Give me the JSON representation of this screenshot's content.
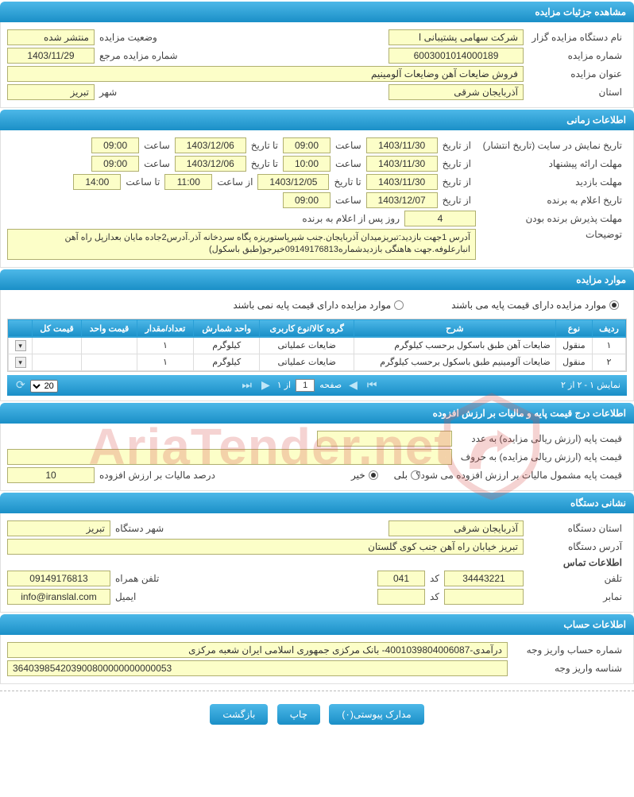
{
  "colors": {
    "header_gradient_top": "#4db8e8",
    "header_gradient_bottom": "#1a8fc7",
    "header_text": "#ffffff",
    "field_bg": "#fcfec8",
    "field_border": "#b0b070",
    "watermark": "#d9534f",
    "table_border": "#dddddd"
  },
  "sections": {
    "details": {
      "title": "مشاهده جزئیات مزایده",
      "org_label": "نام دستگاه مزایده گزار",
      "org_value": "شركت سهامی پشتیبانی ا",
      "status_label": "وضعیت مزایده",
      "status_value": "منتشر شده",
      "no_label": "شماره مزایده",
      "no_value": "6003001014000189",
      "ref_label": "شماره مزایده مرجع",
      "ref_value": "1403/11/29",
      "title_label": "عنوان مزایده",
      "title_value": "فروش ضایعات آهن وضایعات آلومینیم",
      "province_label": "استان",
      "province_value": "آذربایجان شرقی",
      "city_label": "شهر",
      "city_value": "تبریز"
    },
    "timing": {
      "title": "اطلاعات زمانی",
      "display_label": "تاریخ نمایش در سایت (تاریخ انتشار)",
      "offer_label": "مهلت ارائه پیشنهاد",
      "visit_label": "مهلت بازدید",
      "announce_label": "تاریخ اعلام به برنده",
      "accept_label": "مهلت پذیرش برنده بودن",
      "from_date": "از تاریخ",
      "to_date": "تا تاریخ",
      "time": "ساعت",
      "from_time": "از ساعت",
      "to_time": "تا ساعت",
      "after_announce": "روز پس از اعلام به برنده",
      "display_from": "1403/11/30",
      "display_from_time": "09:00",
      "display_to": "1403/12/06",
      "display_to_time": "09:00",
      "offer_from": "1403/11/30",
      "offer_from_time": "10:00",
      "offer_to": "1403/12/06",
      "offer_to_time": "09:00",
      "visit_from": "1403/11/30",
      "visit_to": "1403/12/05",
      "visit_from_time": "11:00",
      "visit_to_time": "14:00",
      "announce_from": "1403/12/07",
      "announce_time": "09:00",
      "accept_days": "4",
      "desc_label": "توضیحات",
      "desc_value": "آدرس 1جهت بازدید:تبریزمیدان آذربایجان.جنب شیرپاستوریزه پگاه سردخانه آذر.آدرس2جاده مایان بعدازپل راه آهن انبارعلوفه.جهت هاهنگی بازدیدشماره09149176813خیرجو(طبق باسکول)"
    },
    "items": {
      "title": "موارد مزایده",
      "radio1": "موارد مزایده دارای قیمت پایه می باشند",
      "radio2": "موارد مزایده دارای قیمت پایه نمی باشند",
      "columns": [
        "ردیف",
        "نوع",
        "شرح",
        "گروه کالا/نوع کاربری",
        "واحد شمارش",
        "تعداد/مقدار",
        "قیمت واحد",
        "قیمت کل",
        ""
      ],
      "rows": [
        [
          "۱",
          "منقول",
          "ضایعات آهن طبق باسکول برحسب کیلوگرم",
          "ضایعات عملیاتی",
          "کیلوگرم",
          "۱",
          "",
          "",
          ""
        ],
        [
          "۲",
          "منقول",
          "ضایعات آلومینیم طبق باسکول برحسب کیلوگرم",
          "ضایعات عملیاتی",
          "کیلوگرم",
          "۱",
          "",
          "",
          ""
        ]
      ],
      "pager": {
        "display": "نمایش ۱ - ۲ از ۲",
        "page_label": "صفحه",
        "page_value": "1",
        "of": "از ۱",
        "per_page": "20"
      }
    },
    "price": {
      "title": "اطلاعات درج قیمت پایه و مالیات بر ارزش افزوده",
      "num_label": "قیمت پایه (ارزش ریالی مزایده) به عدد",
      "word_label": "قیمت پایه (ارزش ریالی مزایده) به حروف",
      "vat_q": "قیمت پایه مشمول مالیات بر ارزش افزوده می شود؟",
      "yes": "بلی",
      "no": "خیر",
      "vat_pct_label": "درصد مالیات بر ارزش افزوده",
      "vat_pct": "10"
    },
    "org": {
      "title": "نشانی دستگاه",
      "province_label": "استان دستگاه",
      "province": "آذربایجان شرقی",
      "city_label": "شهر دستگاه",
      "city": "تبریز",
      "addr_label": "آدرس دستگاه",
      "addr": "تبریز خیابان راه آهن جنب کوی گلستان",
      "contact_title": "اطلاعات تماس",
      "phone_label": "تلفن",
      "phone": "34443221",
      "code_label": "کد",
      "code1": "041",
      "mobile_label": "تلفن همراه",
      "mobile": "09149176813",
      "fax_label": "نمابر",
      "fax": "",
      "code2": "",
      "email_label": "ایمیل",
      "email": "info@iranslal.com"
    },
    "account": {
      "title": "اطلاعات حساب",
      "acct_label": "شماره حساب واریز وجه",
      "acct_value": "درآمدی-4001039804006087- بانک مرکزی جمهوری اسلامی ایران شعبه مرکزی",
      "id_label": "شناسه واریز وجه",
      "id_value": "364039854203900800000000000053"
    }
  },
  "buttons": {
    "attachments": "مدارک پیوستی(۰)",
    "print": "چاپ",
    "back": "بازگشت"
  },
  "watermark": "AriaTender.net"
}
